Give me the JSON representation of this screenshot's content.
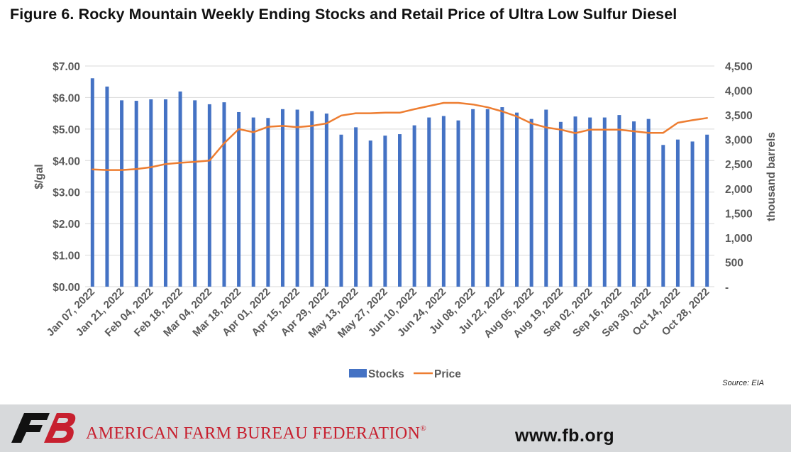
{
  "title": "Figure 6. Rocky Mountain Weekly Ending Stocks and Retail Price of Ultra Low Sulfur Diesel",
  "source": "Source: EIA",
  "footer": {
    "organization": "AMERICAN FARM BUREAU FEDERATION",
    "registered_mark": "®",
    "url": "www.fb.org",
    "logo_text": "FB"
  },
  "colors": {
    "stocks": "#4472c4",
    "price": "#ed7d31",
    "grid": "#d9d9d9",
    "text": "#595959",
    "footer_bg": "#d7d9db",
    "brand_red": "#c7202f"
  },
  "chart_data": {
    "type": "bar+line",
    "dates": [
      "Jan 07, 2022",
      "Jan 14, 2022",
      "Jan 21, 2022",
      "Jan 28, 2022",
      "Feb 04, 2022",
      "Feb 11, 2022",
      "Feb 18, 2022",
      "Feb 25, 2022",
      "Mar 04, 2022",
      "Mar 11, 2022",
      "Mar 18, 2022",
      "Mar 25, 2022",
      "Apr 01, 2022",
      "Apr 08, 2022",
      "Apr 15, 2022",
      "Apr 22, 2022",
      "Apr 29, 2022",
      "May 06, 2022",
      "May 13, 2022",
      "May 20, 2022",
      "May 27, 2022",
      "Jun 03, 2022",
      "Jun 10, 2022",
      "Jun 17, 2022",
      "Jun 24, 2022",
      "Jul 01, 2022",
      "Jul 08, 2022",
      "Jul 15, 2022",
      "Jul 22, 2022",
      "Jul 29, 2022",
      "Aug 05, 2022",
      "Aug 12, 2022",
      "Aug 19, 2022",
      "Aug 26, 2022",
      "Sep 02, 2022",
      "Sep 09, 2022",
      "Sep 16, 2022",
      "Sep 23, 2022",
      "Sep 30, 2022",
      "Oct 07, 2022",
      "Oct 14, 2022",
      "Oct 21, 2022",
      "Oct 28, 2022"
    ],
    "x_tick_labels": [
      "Jan 07, 2022",
      "Jan 21, 2022",
      "Feb 04, 2022",
      "Feb 18, 2022",
      "Mar 04, 2022",
      "Mar 18, 2022",
      "Apr 01, 2022",
      "Apr 15, 2022",
      "Apr 29, 2022",
      "May 13, 2022",
      "May 27, 2022",
      "Jun 10, 2022",
      "Jun 24, 2022",
      "Jul 08, 2022",
      "Jul 22, 2022",
      "Aug 05, 2022",
      "Aug 19, 2022",
      "Sep 02, 2022",
      "Sep 16, 2022",
      "Sep 30, 2022",
      "Oct 14, 2022",
      "Oct 28, 2022"
    ],
    "series": [
      {
        "name": "Stocks",
        "type": "bar",
        "axis": "right",
        "values": [
          4250,
          4080,
          3800,
          3790,
          3820,
          3820,
          3980,
          3800,
          3720,
          3760,
          3560,
          3450,
          3440,
          3620,
          3610,
          3580,
          3530,
          3100,
          3250,
          2980,
          3080,
          3110,
          3290,
          3450,
          3480,
          3390,
          3620,
          3620,
          3660,
          3550,
          3420,
          3610,
          3360,
          3470,
          3450,
          3450,
          3500,
          3370,
          3420,
          2890,
          3000,
          2960,
          3100
        ]
      },
      {
        "name": "Price",
        "type": "line",
        "axis": "left",
        "values": [
          3.72,
          3.7,
          3.7,
          3.73,
          3.79,
          3.89,
          3.93,
          3.96,
          4.0,
          4.55,
          5.0,
          4.9,
          5.07,
          5.1,
          5.06,
          5.1,
          5.18,
          5.43,
          5.5,
          5.5,
          5.52,
          5.52,
          5.63,
          5.73,
          5.83,
          5.83,
          5.78,
          5.69,
          5.56,
          5.4,
          5.18,
          5.05,
          4.98,
          4.87,
          4.98,
          4.98,
          4.98,
          4.93,
          4.88,
          4.88,
          5.2,
          5.28,
          5.35
        ]
      }
    ],
    "left_axis": {
      "label": "$/gal",
      "min": 0,
      "max": 7,
      "ticks": [
        "$0.00",
        "$1.00",
        "$2.00",
        "$3.00",
        "$4.00",
        "$5.00",
        "$6.00",
        "$7.00"
      ]
    },
    "right_axis": {
      "label": "thousand barrels",
      "min": 0,
      "max": 4500,
      "ticks": [
        "-",
        "500",
        "1,000",
        "1,500",
        "2,000",
        "2,500",
        "3,000",
        "3,500",
        "4,000",
        "4,500"
      ]
    },
    "grid": true,
    "legend_position": "bottom"
  }
}
